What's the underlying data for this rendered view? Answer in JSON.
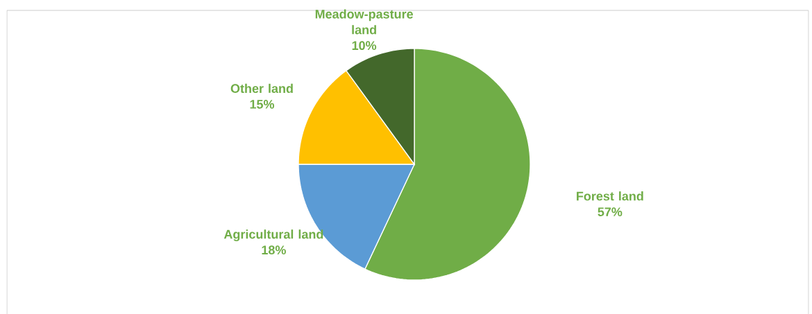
{
  "chart_data": {
    "type": "pie",
    "categories": [
      "Forest land",
      "Agricultural land",
      "Other land",
      "Meadow-pasture land"
    ],
    "values": [
      57,
      18,
      15,
      10
    ],
    "colors": [
      "#70ad47",
      "#5b9bd5",
      "#ffc000",
      "#43682b"
    ],
    "value_labels": [
      "57%",
      "18%",
      "15%",
      "10%"
    ]
  }
}
